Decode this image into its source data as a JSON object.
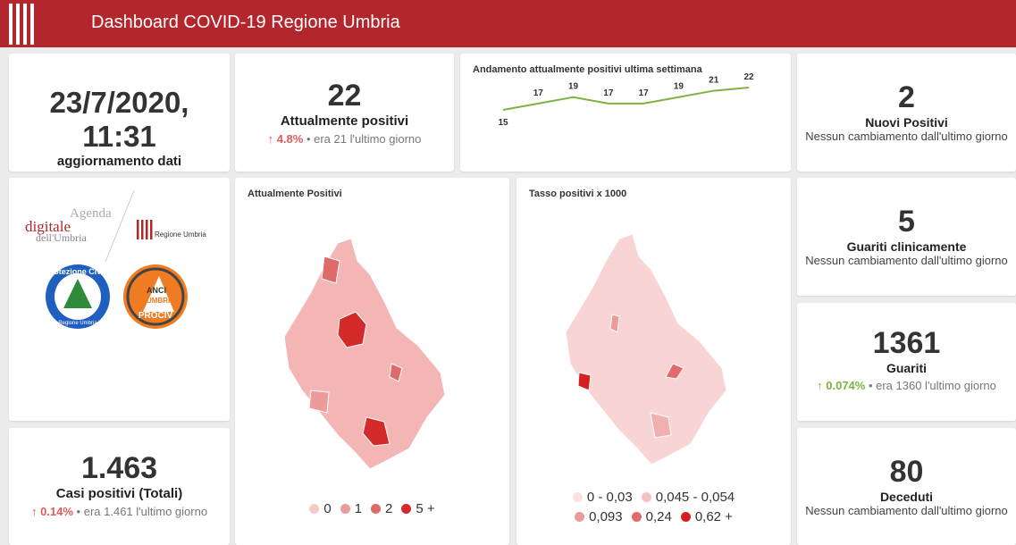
{
  "header": {
    "title": "Dashboard COVID-19 Regione Umbria"
  },
  "update": {
    "datetime": "23/7/2020, 11:31",
    "label": "aggiornamento dati"
  },
  "current_positives": {
    "value": "22",
    "label": "Attualmente positivi",
    "change": "4.8%",
    "note": "era 21 l'ultimo giorno"
  },
  "trend": {
    "title": "Andamento attualmente positivi ultima settimana",
    "values": [
      15,
      17,
      19,
      17,
      17,
      19,
      21,
      22
    ],
    "color": "#7cb342"
  },
  "new_positives": {
    "value": "2",
    "label": "Nuovi Positivi",
    "note": "Nessun cambiamento dall'ultimo giorno"
  },
  "logos": {
    "agenda": [
      "Agenda",
      "digitale",
      "dell'Umbria"
    ],
    "region": "Regione Umbria",
    "civil_protection": [
      "Protezione Civile",
      "Regione Umbria"
    ],
    "anci": [
      "ANCI",
      "UMBRIA",
      "PROCIV"
    ]
  },
  "map_current": {
    "title": "Attualmente Positivi",
    "legend": [
      {
        "label": "0",
        "color": "#f6c9c9"
      },
      {
        "label": "1",
        "color": "#ec9a9a"
      },
      {
        "label": "2",
        "color": "#e06a6a"
      },
      {
        "label": "5 +",
        "color": "#d42a2a"
      }
    ]
  },
  "map_rate": {
    "title": "Tasso positivi x 1000",
    "legend": [
      {
        "label": "0 - 0,03",
        "color": "#fbe0e0"
      },
      {
        "label": "0,045 - 0,054",
        "color": "#f4c1c1"
      },
      {
        "label": "0,093",
        "color": "#ec9a9a"
      },
      {
        "label": "0,24",
        "color": "#e26a6a"
      },
      {
        "label": "0,62 +",
        "color": "#d42020"
      }
    ]
  },
  "healed_clinically": {
    "value": "5",
    "label": "Guariti clinicamente",
    "note": "Nessun cambiamento dall'ultimo giorno"
  },
  "healed": {
    "value": "1361",
    "label": "Guariti",
    "change": "0.074%",
    "note": "era 1360 l'ultimo giorno"
  },
  "total_cases": {
    "value": "1.463",
    "label": "Casi positivi (Totali)",
    "change": "0.14%",
    "note": "era 1.461 l'ultimo giorno"
  },
  "deaths": {
    "value": "80",
    "label": "Deceduti",
    "note": "Nessun cambiamento dall'ultimo giorno"
  }
}
